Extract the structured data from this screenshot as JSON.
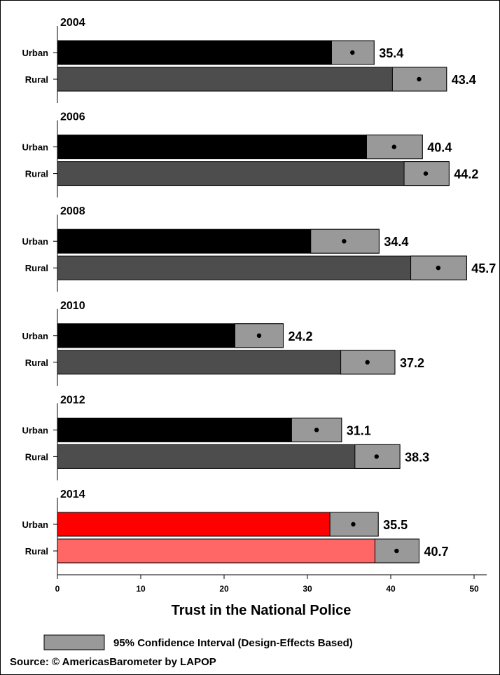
{
  "chart_data": {
    "type": "bar",
    "orientation": "horizontal",
    "xlabel": "Trust in the National Police",
    "xlim": [
      0,
      50
    ],
    "x_ticks": [
      0,
      10,
      20,
      30,
      40,
      50
    ],
    "grid": false,
    "groups": [
      {
        "year": "2004",
        "bars": [
          {
            "category": "Urban",
            "value": 35.4,
            "ci": [
              32.9,
              38.0
            ]
          },
          {
            "category": "Rural",
            "value": 43.4,
            "ci": [
              40.2,
              46.7
            ]
          }
        ]
      },
      {
        "year": "2006",
        "bars": [
          {
            "category": "Urban",
            "value": 40.4,
            "ci": [
              37.1,
              43.8
            ]
          },
          {
            "category": "Rural",
            "value": 44.2,
            "ci": [
              41.6,
              47.0
            ]
          }
        ]
      },
      {
        "year": "2008",
        "bars": [
          {
            "category": "Urban",
            "value": 34.4,
            "ci": [
              30.4,
              38.6
            ]
          },
          {
            "category": "Rural",
            "value": 45.7,
            "ci": [
              42.4,
              49.1
            ]
          }
        ]
      },
      {
        "year": "2010",
        "bars": [
          {
            "category": "Urban",
            "value": 24.2,
            "ci": [
              21.3,
              27.1
            ]
          },
          {
            "category": "Rural",
            "value": 37.2,
            "ci": [
              34.0,
              40.5
            ]
          }
        ]
      },
      {
        "year": "2012",
        "bars": [
          {
            "category": "Urban",
            "value": 31.1,
            "ci": [
              28.1,
              34.1
            ]
          },
          {
            "category": "Rural",
            "value": 38.3,
            "ci": [
              35.7,
              41.1
            ]
          }
        ]
      },
      {
        "year": "2014",
        "bars": [
          {
            "category": "Urban",
            "value": 35.5,
            "ci": [
              32.7,
              38.5
            ]
          },
          {
            "category": "Rural",
            "value": 40.7,
            "ci": [
              38.1,
              43.4
            ]
          }
        ]
      }
    ],
    "colors": {
      "urban": "#000000",
      "rural": "#4d4d4d",
      "urban_highlight": "#ff0000",
      "rural_highlight": "#ff6666",
      "ci": "#999999"
    },
    "highlight_year": "2014",
    "legend": {
      "label": "95% Confidence Interval (Design-Effects Based)",
      "placement": "bottom-left"
    }
  },
  "source": "Source: © AmericasBarometer by LAPOP"
}
